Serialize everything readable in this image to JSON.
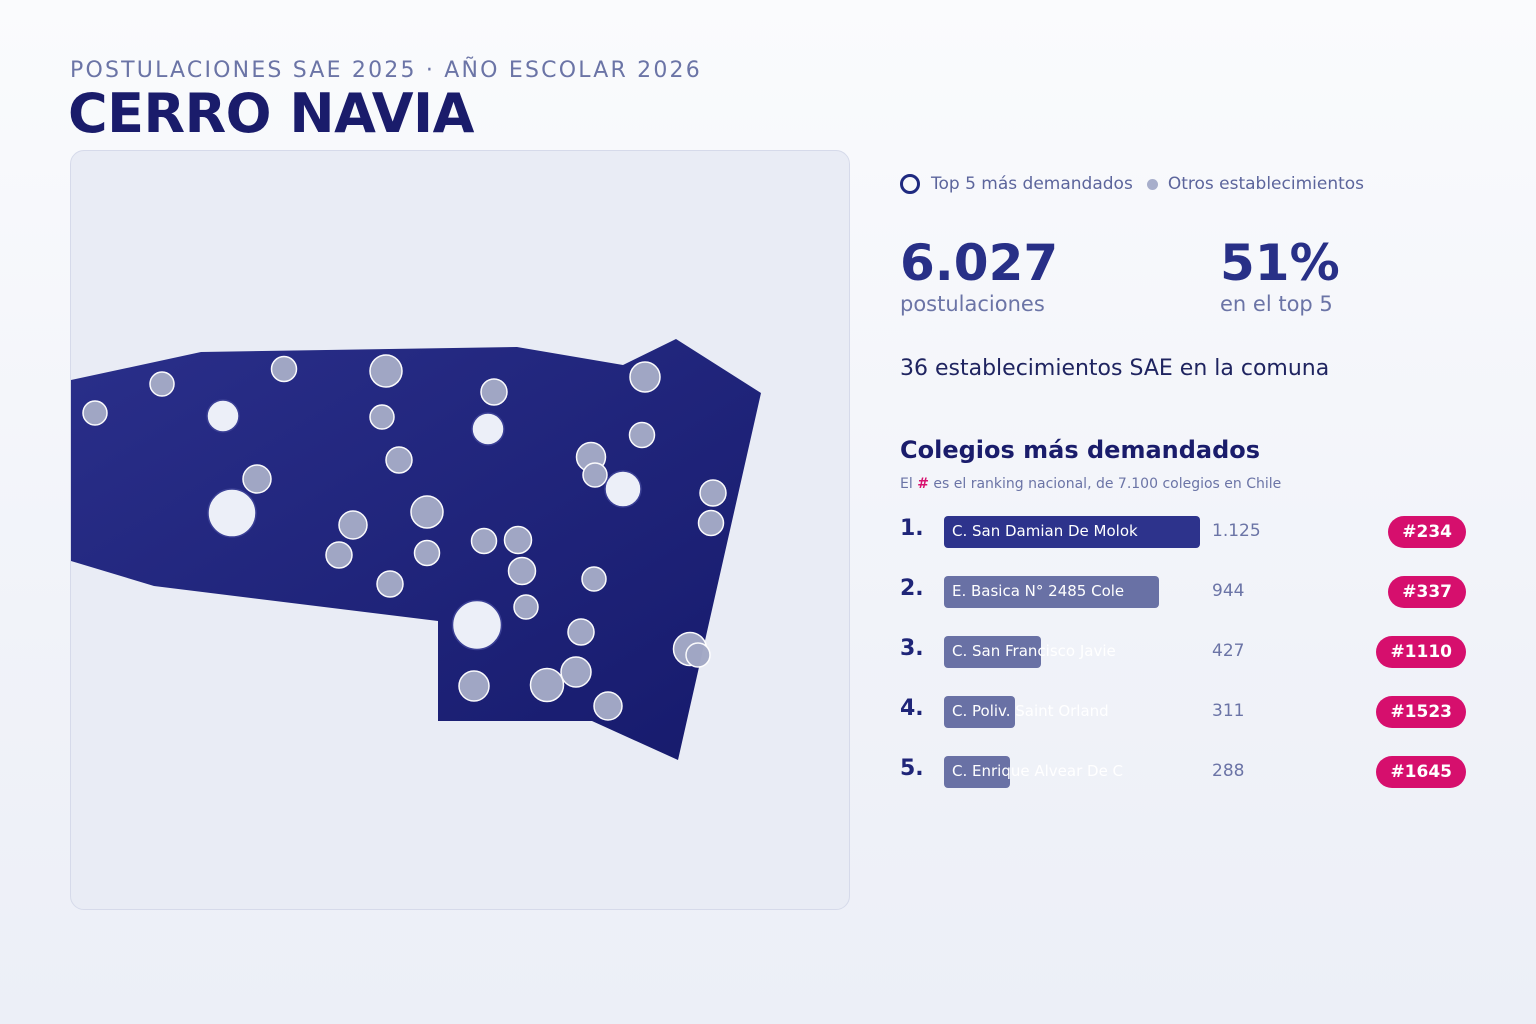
{
  "header": {
    "subtitle": "POSTULACIONES SAE 2025 · AÑO ESCOLAR 2026",
    "title": "CERRO NAVIA"
  },
  "legend": {
    "top5_label": "Top 5 más demandados",
    "others_label": "Otros establecimientos"
  },
  "stats": {
    "postulaciones_value": "6.027",
    "postulaciones_label": "postulaciones",
    "top5_share_value": "51%",
    "top5_share_label": "en el top 5",
    "establecimientos_text": "36 establecimientos SAE en la comuna"
  },
  "ranking": {
    "title": "Colegios más demandados",
    "note_prefix": "El",
    "note_hash": "#",
    "note_suffix": "es el ranking nacional, de 7.100 colegios en Chile",
    "items": [
      {
        "position": "1.",
        "name": "C. San Damian De Molok",
        "value": "1.125",
        "rank": "#234",
        "share": 1.0
      },
      {
        "position": "2.",
        "name": "E. Basica N° 2485 Cole",
        "value": "944",
        "rank": "#337",
        "share": 0.839
      },
      {
        "position": "3.",
        "name": "C. San Francisco Javie",
        "value": "427",
        "rank": "#1110",
        "share": 0.38
      },
      {
        "position": "4.",
        "name": "C. Poliv. Saint Orland",
        "value": "311",
        "rank": "#1523",
        "share": 0.276
      },
      {
        "position": "5.",
        "name": "C. Enrique Alvear De C",
        "value": "288",
        "rank": "#1645",
        "share": 0.256
      }
    ]
  },
  "colors": {
    "territory": "#1f2480",
    "top5_marker": "#eceff8",
    "other_marker": "#a3a9c6",
    "badge": "#d60f6d"
  }
}
